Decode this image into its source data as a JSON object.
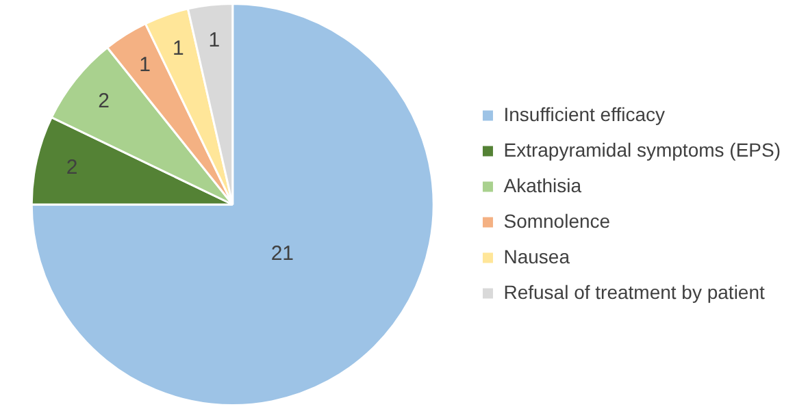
{
  "chart_data": {
    "type": "pie",
    "categories": [
      "Insufficient efficacy",
      "Extrapyramidal symptoms (EPS)",
      "Akathisia",
      "Somnolence",
      "Nausea",
      "Refusal of treatment by patient"
    ],
    "values": [
      21,
      2,
      2,
      1,
      1,
      1
    ],
    "colors": [
      "#9dc3e6",
      "#548235",
      "#a9d18e",
      "#f4b183",
      "#ffe699",
      "#d9d9d9"
    ],
    "data_labels": true,
    "legend": "right"
  }
}
